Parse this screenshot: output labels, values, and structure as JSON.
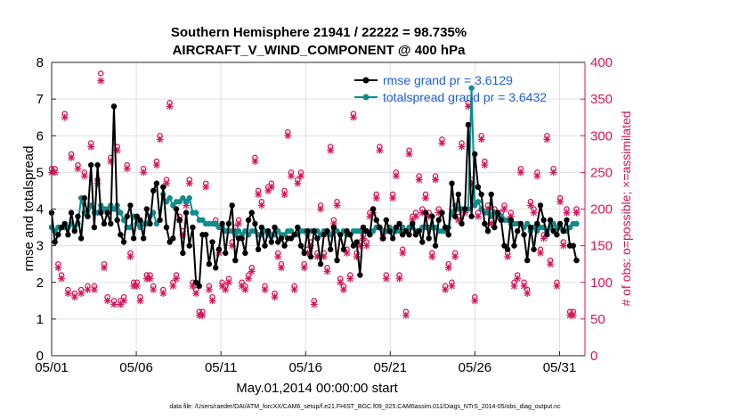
{
  "chart_data": {
    "type": "line",
    "title": "Southern Hemisphere 21941 / 22222 = 98.735%",
    "subtitle": "AIRCRAFT_V_WIND_COMPONENT @ 400 hPa",
    "xlabel": "May.01,2014 00:00:00 start",
    "ylabel": "rmse and totalspread",
    "ylabel_right": "# of obs: o=possible; ×=assimilated",
    "xlim": [
      0,
      31.5
    ],
    "ylim": [
      0,
      8
    ],
    "ylim_right": [
      0,
      400
    ],
    "x_tick_values": [
      0,
      5,
      10,
      15,
      20,
      25,
      30
    ],
    "x_tick_labels": [
      "05/01",
      "05/06",
      "05/11",
      "05/16",
      "05/21",
      "05/26",
      "05/31"
    ],
    "y_ticks": [
      "0",
      "1",
      "2",
      "3",
      "4",
      "5",
      "6",
      "7",
      "8"
    ],
    "y_ticks_right": [
      "0",
      "50",
      "100",
      "150",
      "200",
      "250",
      "300",
      "350",
      "400"
    ],
    "legend": {
      "location": "top-right",
      "entries": [
        "rmse grand pr = 3.6129",
        "totalspread grand pr = 3.6432"
      ]
    },
    "series": [
      {
        "name": "rmse",
        "color": "#000000",
        "values": [
          3.9,
          3.1,
          3.3,
          3.5,
          3.6,
          3.3,
          3.9,
          3.4,
          3.8,
          3.2,
          4.3,
          3.8,
          5.2,
          3.5,
          5.2,
          3.9,
          3.6,
          3.9,
          3.6,
          6.8,
          3.7,
          3.3,
          3.1,
          3.8,
          4.1,
          3.2,
          3.8,
          3.7,
          3.2,
          4.0,
          3.6,
          4.5,
          4.7,
          3.7,
          4.6,
          3.5,
          3.1,
          3.2,
          4.0,
          3.7,
          2.8,
          3.9,
          3.0,
          3.5,
          2.0,
          1.9,
          3.3,
          3.3,
          2.5,
          3.1,
          2.4,
          2.9,
          3.6,
          2.8,
          3.6,
          4.1,
          2.6,
          3.2,
          3.2,
          2.8,
          3.7,
          3.9,
          3.6,
          2.9,
          3.5,
          3.0,
          3.4,
          3.1,
          3.5,
          3.1,
          3.2,
          3.0,
          3.2,
          3.2,
          3.3,
          3.5,
          3.0,
          2.8,
          3.4,
          2.7,
          3.4,
          3.2,
          2.5,
          3.3,
          3.4,
          2.9,
          3.5,
          2.6,
          3.3,
          2.9,
          3.4,
          3.3,
          3.0,
          3.1,
          2.2,
          3.5,
          3.4,
          3.3,
          4.0,
          3.7,
          3.5,
          3.2,
          3.7,
          3.4,
          3.2,
          3.5,
          3.6,
          3.3,
          3.4,
          3.3,
          3.6,
          3.3,
          3.4,
          3.1,
          3.9,
          3.2,
          3.8,
          3.0,
          3.7,
          3.9,
          3.5,
          3.3,
          4.7,
          3.8,
          4.4,
          3.6,
          4.0,
          6.3,
          3.8,
          5.5,
          4.6,
          4.4,
          3.6,
          3.4,
          4.4,
          3.5,
          3.9,
          3.7,
          3.0,
          2.9,
          3.7,
          3.0,
          3.4,
          3.6,
          3.3,
          2.6,
          3.5,
          2.9,
          3.6,
          4.1,
          3.7,
          3.3,
          3.7,
          3.4,
          3.3,
          3.6,
          3.4,
          3.7,
          3.0,
          3.0,
          2.6
        ]
      },
      {
        "name": "totalspread",
        "color": "#0f8c8c",
        "values": [
          3.5,
          3.4,
          3.5,
          3.5,
          3.5,
          3.5,
          3.6,
          3.5,
          3.6,
          4.3,
          3.9,
          3.8,
          4.1,
          3.9,
          3.9,
          4.1,
          4.0,
          4.0,
          4.1,
          4.0,
          4.1,
          3.9,
          3.7,
          3.5,
          3.5,
          3.8,
          3.6,
          3.5,
          3.6,
          3.6,
          3.8,
          3.9,
          3.6,
          3.7,
          4.4,
          4.2,
          4.3,
          4.1,
          4.2,
          4.2,
          4.3,
          4.2,
          4.3,
          3.9,
          3.9,
          3.7,
          3.7,
          3.6,
          3.6,
          3.6,
          3.6,
          3.5,
          3.5,
          3.4,
          3.4,
          3.4,
          3.3,
          3.4,
          3.3,
          3.4,
          3.3,
          3.4,
          3.4,
          3.3,
          3.3,
          3.4,
          3.3,
          3.3,
          3.3,
          3.4,
          3.3,
          3.3,
          3.4,
          3.4,
          3.3,
          3.3,
          3.4,
          3.4,
          3.3,
          3.4,
          3.4,
          3.4,
          3.3,
          3.4,
          3.4,
          3.3,
          3.4,
          3.4,
          3.3,
          3.4,
          3.3,
          3.3,
          3.4,
          3.4,
          3.4,
          3.4,
          3.4,
          3.3,
          3.4,
          3.5,
          3.5,
          3.4,
          3.4,
          3.5,
          3.4,
          3.4,
          3.4,
          3.5,
          3.4,
          3.5,
          3.5,
          3.4,
          3.4,
          3.5,
          3.5,
          3.5,
          3.5,
          3.5,
          3.4,
          3.4,
          3.4,
          3.5,
          3.9,
          4.1,
          4.0,
          4.0,
          4.0,
          4.0,
          7.3,
          4.1,
          4.2,
          4.0,
          3.9,
          3.9,
          3.8,
          3.9,
          3.8,
          3.8,
          3.7,
          3.7,
          3.6,
          3.6,
          3.6,
          3.6,
          3.5,
          3.6,
          3.4,
          3.5,
          3.4,
          3.5,
          3.5,
          3.4,
          3.5,
          3.6,
          3.5,
          3.5,
          3.4,
          3.4,
          3.5,
          3.6,
          3.6
        ]
      },
      {
        "name": "possible",
        "color": "#d6145a",
        "values": [
          255,
          255,
          125,
          110,
          330,
          90,
          275,
          85,
          260,
          90,
          250,
          95,
          290,
          95,
          240,
          385,
          125,
          80,
          270,
          75,
          285,
          75,
          80,
          260,
          140,
          100,
          100,
          80,
          255,
          110,
          110,
          95,
          265,
          300,
          90,
          240,
          345,
          100,
          110,
          190,
          170,
          210,
          240,
          100,
          90,
          60,
          60,
          235,
          95,
          80,
          185,
          145,
          100,
          95,
          105,
          155,
          175,
          185,
          100,
          95,
          110,
          120,
          270,
          225,
          210,
          95,
          230,
          235,
          85,
          140,
          125,
          225,
          305,
          250,
          95,
          240,
          250,
          125,
          145,
          155,
          75,
          140,
          205,
          140,
          120,
          285,
          185,
          210,
          105,
          95,
          145,
          110,
          330,
          140,
          155,
          165,
          155,
          195,
          200,
          220,
          285,
          165,
          110,
          175,
          220,
          250,
          110,
          145,
          60,
          280,
          190,
          195,
          245,
          200,
          220,
          195,
          140,
          245,
          200,
          295,
          95,
          125,
          100,
          140,
          190,
          290,
          200,
          345,
          240,
          80,
          195,
          300,
          265,
          205,
          185,
          200,
          195,
          195,
          205,
          140,
          195,
          100,
          110,
          255,
          100,
          90,
          210,
          200,
          250,
          145,
          165,
          300,
          130,
          255,
          100,
          215,
          155,
          200,
          60,
          60,
          200
        ]
      },
      {
        "name": "assimilated",
        "color": "#d6145a",
        "values": [
          250,
          250,
          120,
          105,
          325,
          85,
          270,
          80,
          255,
          85,
          245,
          90,
          285,
          90,
          235,
          375,
          120,
          75,
          265,
          70,
          280,
          70,
          75,
          255,
          135,
          95,
          95,
          75,
          250,
          105,
          105,
          90,
          260,
          295,
          85,
          235,
          340,
          95,
          105,
          185,
          165,
          205,
          235,
          95,
          85,
          55,
          55,
          230,
          90,
          75,
          180,
          140,
          95,
          90,
          100,
          150,
          170,
          180,
          95,
          90,
          105,
          115,
          265,
          220,
          205,
          90,
          225,
          230,
          80,
          135,
          120,
          220,
          300,
          245,
          90,
          235,
          245,
          120,
          140,
          150,
          70,
          135,
          200,
          135,
          115,
          280,
          180,
          205,
          100,
          90,
          140,
          105,
          325,
          135,
          150,
          160,
          150,
          190,
          195,
          215,
          280,
          160,
          105,
          170,
          215,
          245,
          105,
          140,
          55,
          275,
          185,
          190,
          240,
          195,
          215,
          190,
          135,
          240,
          195,
          290,
          90,
          120,
          95,
          135,
          185,
          285,
          195,
          340,
          235,
          75,
          190,
          295,
          260,
          200,
          180,
          195,
          190,
          190,
          200,
          135,
          190,
          95,
          105,
          250,
          95,
          85,
          205,
          195,
          245,
          140,
          160,
          295,
          125,
          250,
          95,
          210,
          150,
          195,
          55,
          55,
          195
        ]
      }
    ]
  },
  "footer": "data file: /Users/raeder/DAI/ATM_forcXX/CAM6_setup/f.e21.FHIST_BGC.f09_025.CAM6assim.011/Diags_NTrS_2014-05/obs_diag_output.nc"
}
